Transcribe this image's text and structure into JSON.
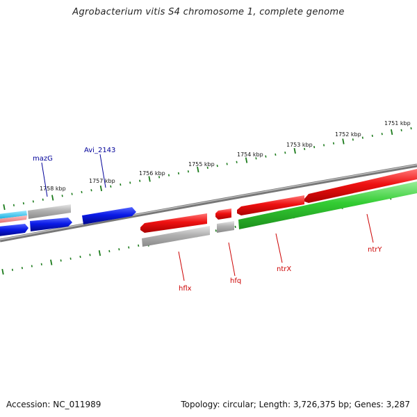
{
  "title": "Agrobacterium vitis S4 chromosome 1, complete genome",
  "accession": "Accession: NC_011989",
  "summary": "Topology: circular; Length: 3,726,375 bp; Genes: 3,287",
  "colors": {
    "backbone": "#888888",
    "tick": "#1a7a1a",
    "red_gene": "#ee1111",
    "blue_gene": "#0a1ae6",
    "green_gene": "#33cc33",
    "gray_gene": "#aaaaaa",
    "cyan_gene": "#22c6ee",
    "pink_gene": "#ee8888",
    "label_red": "#cc0000",
    "label_blue": "#000099"
  },
  "scale_labels": [
    "1751 kbp",
    "1752 kbp",
    "1753 kbp",
    "1754 kbp",
    "1755 kbp",
    "1756 kbp",
    "1757 kbp",
    "1758 kbp"
  ],
  "gene_labels": {
    "mazG": "mazG",
    "avi2143": "Avi_2143",
    "hflx": "hflx",
    "hfq": "hfq",
    "ntrX": "ntrX",
    "ntrY": "ntrY"
  }
}
